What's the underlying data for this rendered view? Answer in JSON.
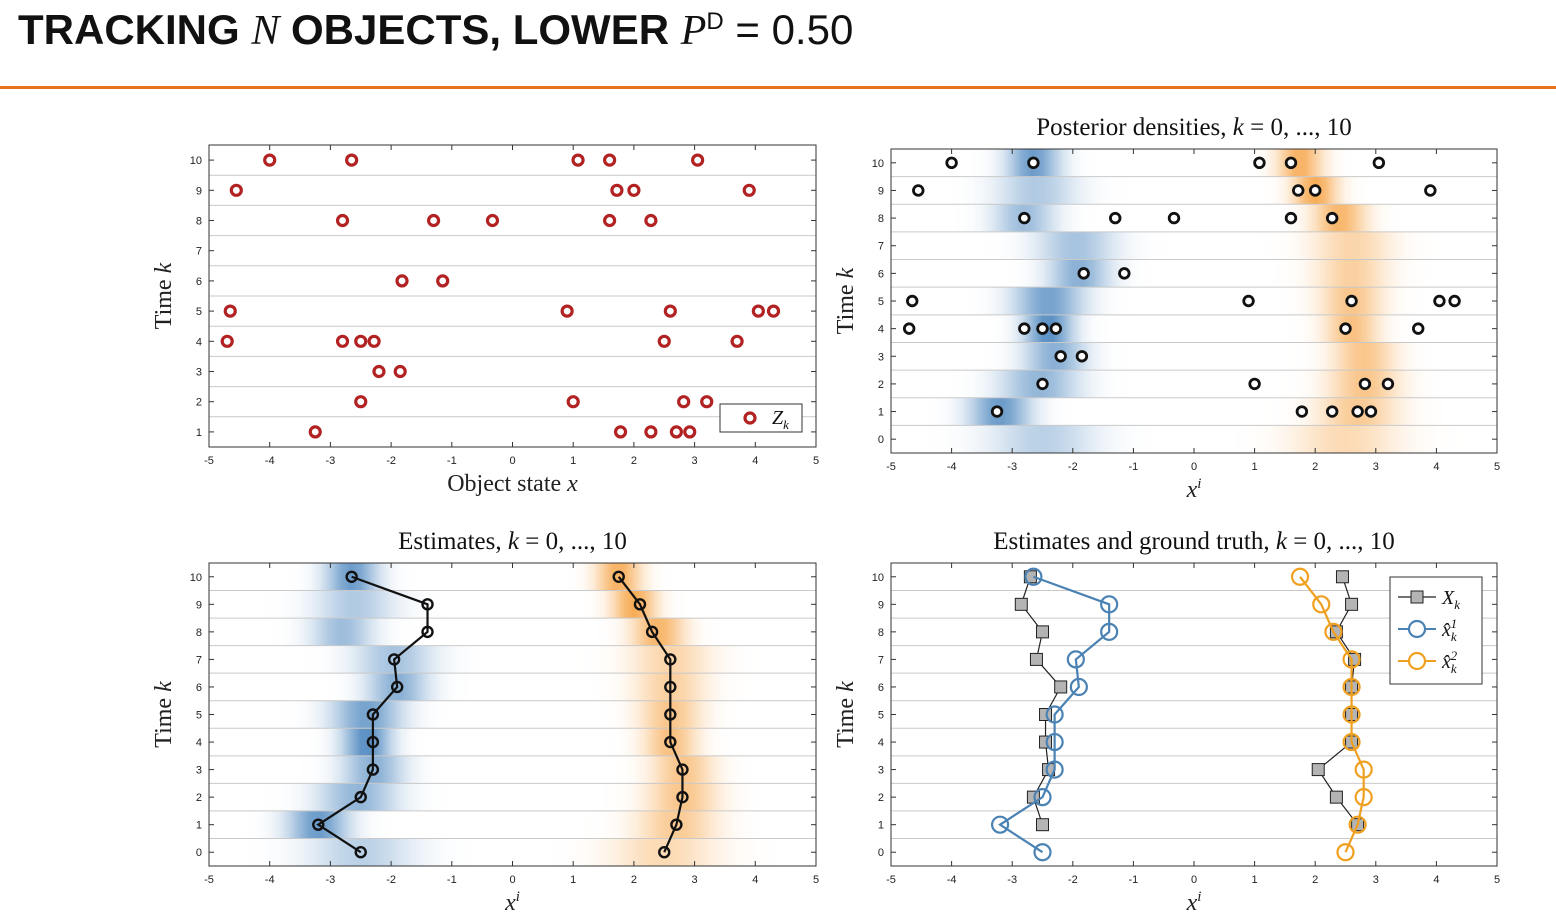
{
  "slide": {
    "title_prefix": "TRACKING ",
    "title_N": "N",
    "title_mid": " OBJECTS, LOWER ",
    "title_P": "P",
    "title_sup": "D",
    "title_eq": " = ",
    "title_value": "0.50",
    "accent_color": "#e8731e"
  },
  "chart_data": [
    {
      "id": "p1",
      "type": "scatter",
      "title": "",
      "xlabel": "Object state x",
      "ylabel": "Time k",
      "xlim": [
        -5,
        5
      ],
      "ylim": [
        0.5,
        10.5
      ],
      "xticks": [
        -5,
        -4,
        -3,
        -2,
        -1,
        0,
        1,
        2,
        3,
        4,
        5
      ],
      "yticks": [
        1,
        2,
        3,
        4,
        5,
        6,
        7,
        8,
        9,
        10
      ],
      "grid": "horizontal",
      "legend": {
        "position": "bottom-right",
        "entries": [
          {
            "label": "Zk",
            "color": "#b22222",
            "marker": "circle"
          }
        ]
      },
      "measurements": [
        {
          "k": 10,
          "x": [
            -4.0,
            -2.65,
            1.08,
            1.6,
            3.05
          ]
        },
        {
          "k": 9,
          "x": [
            -4.55,
            1.72,
            2.0,
            3.9
          ]
        },
        {
          "k": 8,
          "x": [
            -2.8,
            -1.3,
            -0.33,
            1.6,
            2.28
          ]
        },
        {
          "k": 7,
          "x": []
        },
        {
          "k": 6,
          "x": [
            -1.82,
            -1.15
          ]
        },
        {
          "k": 5,
          "x": [
            -4.65,
            0.9,
            2.6,
            4.05,
            4.3
          ]
        },
        {
          "k": 4,
          "x": [
            -4.7,
            -2.8,
            -2.5,
            -2.28,
            2.5,
            3.7
          ]
        },
        {
          "k": 3,
          "x": [
            -2.2,
            -1.85
          ]
        },
        {
          "k": 2,
          "x": [
            -2.5,
            1.0,
            2.82,
            3.2
          ]
        },
        {
          "k": 1,
          "x": [
            -3.25,
            1.78,
            2.28,
            2.7,
            2.92
          ]
        }
      ]
    },
    {
      "id": "p2",
      "type": "heatmap",
      "title": "Posterior densities, k = 0, ..., 10",
      "xlabel": "xi",
      "ylabel": "Time k",
      "xlim": [
        -5,
        5
      ],
      "ylim": [
        -0.5,
        10.5
      ],
      "xticks": [
        -5,
        -4,
        -3,
        -2,
        -1,
        0,
        1,
        2,
        3,
        4,
        5
      ],
      "yticks": [
        0,
        1,
        2,
        3,
        4,
        5,
        6,
        7,
        8,
        9,
        10
      ],
      "grid": "horizontal",
      "colors": {
        "object1": "#3a7ab8",
        "object2": "#f5962a"
      },
      "densities": [
        {
          "k": 0,
          "mean1": -2.5,
          "std1": 0.6,
          "amp1": 0.35,
          "mean2": 2.5,
          "std2": 0.6,
          "amp2": 0.35
        },
        {
          "k": 1,
          "mean1": -3.2,
          "std1": 0.35,
          "amp1": 0.75,
          "mean2": 2.7,
          "std2": 0.45,
          "amp2": 0.5
        },
        {
          "k": 2,
          "mean1": -2.55,
          "std1": 0.45,
          "amp1": 0.55,
          "mean2": 2.8,
          "std2": 0.4,
          "amp2": 0.55
        },
        {
          "k": 3,
          "mean1": -2.3,
          "std1": 0.35,
          "amp1": 0.6,
          "mean2": 2.8,
          "std2": 0.35,
          "amp2": 0.55
        },
        {
          "k": 4,
          "mean1": -2.4,
          "std1": 0.28,
          "amp1": 0.85,
          "mean2": 2.6,
          "std2": 0.3,
          "amp2": 0.6
        },
        {
          "k": 5,
          "mean1": -2.4,
          "std1": 0.4,
          "amp1": 0.7,
          "mean2": 2.6,
          "std2": 0.35,
          "amp2": 0.55
        },
        {
          "k": 6,
          "mean1": -1.9,
          "std1": 0.35,
          "amp1": 0.6,
          "mean2": 2.6,
          "std2": 0.4,
          "amp2": 0.45
        },
        {
          "k": 7,
          "mean1": -1.95,
          "std1": 0.45,
          "amp1": 0.45,
          "mean2": 2.6,
          "std2": 0.45,
          "amp2": 0.4
        },
        {
          "k": 8,
          "mean1": -2.8,
          "std1": 0.35,
          "amp1": 0.5,
          "mean2": 2.4,
          "std2": 0.3,
          "amp2": 0.7
        },
        {
          "k": 9,
          "mean1": -2.6,
          "std1": 0.45,
          "amp1": 0.4,
          "mean2": 2.0,
          "std2": 0.25,
          "amp2": 0.8
        },
        {
          "k": 10,
          "mean1": -2.65,
          "std1": 0.3,
          "amp1": 0.75,
          "mean2": 1.75,
          "std2": 0.25,
          "amp2": 0.75
        }
      ],
      "measurements": [
        {
          "k": 10,
          "x": [
            -4.0,
            -2.65,
            1.08,
            1.6,
            3.05
          ]
        },
        {
          "k": 9,
          "x": [
            -4.55,
            1.72,
            2.0,
            3.9
          ]
        },
        {
          "k": 8,
          "x": [
            -2.8,
            -1.3,
            -0.33,
            1.6,
            2.28
          ]
        },
        {
          "k": 7,
          "x": []
        },
        {
          "k": 6,
          "x": [
            -1.82,
            -1.15
          ]
        },
        {
          "k": 5,
          "x": [
            -4.65,
            0.9,
            2.6,
            4.05,
            4.3
          ]
        },
        {
          "k": 4,
          "x": [
            -4.7,
            -2.8,
            -2.5,
            -2.28,
            2.5,
            3.7
          ]
        },
        {
          "k": 3,
          "x": [
            -2.2,
            -1.85
          ]
        },
        {
          "k": 2,
          "x": [
            -2.5,
            1.0,
            2.82,
            3.2
          ]
        },
        {
          "k": 1,
          "x": [
            -3.25,
            1.78,
            2.28,
            2.7,
            2.92
          ]
        },
        {
          "k": 0,
          "x": []
        }
      ]
    },
    {
      "id": "p3",
      "type": "line",
      "title": "Estimates, k = 0, ..., 10",
      "xlabel": "xi",
      "ylabel": "Time k",
      "xlim": [
        -5,
        5
      ],
      "ylim": [
        -0.5,
        10.5
      ],
      "xticks": [
        -5,
        -4,
        -3,
        -2,
        -1,
        0,
        1,
        2,
        3,
        4,
        5
      ],
      "yticks": [
        0,
        1,
        2,
        3,
        4,
        5,
        6,
        7,
        8,
        9,
        10
      ],
      "grid": "horizontal",
      "k": [
        0,
        1,
        2,
        3,
        4,
        5,
        6,
        7,
        8,
        9,
        10
      ],
      "series": [
        {
          "x": [
            -2.5,
            -3.2,
            -2.5,
            -2.3,
            -2.3,
            -2.3,
            -1.9,
            -1.95,
            -1.4,
            -1.4,
            -2.65
          ],
          "color": "#111111"
        },
        {
          "x": [
            2.5,
            2.7,
            2.8,
            2.8,
            2.6,
            2.6,
            2.6,
            2.6,
            2.3,
            2.1,
            1.75
          ],
          "color": "#111111"
        }
      ]
    },
    {
      "id": "p4",
      "type": "line",
      "title": "Estimates and ground truth, k = 0, ..., 10",
      "xlabel": "xi",
      "ylabel": "Time k",
      "xlim": [
        -5,
        5
      ],
      "ylim": [
        -0.5,
        10.5
      ],
      "xticks": [
        -5,
        -4,
        -3,
        -2,
        -1,
        0,
        1,
        2,
        3,
        4,
        5
      ],
      "yticks": [
        0,
        1,
        2,
        3,
        4,
        5,
        6,
        7,
        8,
        9,
        10
      ],
      "grid": "horizontal",
      "legend": {
        "position": "top-right",
        "entries": [
          {
            "label": "Xk",
            "color": "#222222",
            "marker": "square"
          },
          {
            "label": "x̂k1",
            "color": "#4a82b4",
            "marker": "circle"
          },
          {
            "label": "x̂k2",
            "color": "#f0a020",
            "marker": "circle"
          }
        ]
      },
      "k": [
        0,
        1,
        2,
        3,
        4,
        5,
        6,
        7,
        8,
        9,
        10
      ],
      "ground_truth_k": [
        1,
        2,
        3,
        4,
        5,
        6,
        7,
        8,
        9,
        10
      ],
      "ground_truth": [
        [
          -2.5,
          -2.65,
          -2.4,
          -2.45,
          -2.45,
          -2.2,
          -2.6,
          -2.5,
          -2.85,
          -2.7
        ],
        [
          2.7,
          2.35,
          2.05,
          2.6,
          2.6,
          2.6,
          2.65,
          2.35,
          2.6,
          2.45
        ]
      ],
      "series": [
        {
          "name": "x̂k1",
          "x": [
            -2.5,
            -3.2,
            -2.5,
            -2.3,
            -2.3,
            -2.3,
            -1.9,
            -1.95,
            -1.4,
            -1.4,
            -2.65
          ],
          "color": "#4a82b4"
        },
        {
          "name": "x̂k2",
          "x": [
            2.5,
            2.7,
            2.8,
            2.8,
            2.6,
            2.6,
            2.6,
            2.6,
            2.3,
            2.1,
            1.75
          ],
          "color": "#f0a020"
        }
      ]
    }
  ]
}
